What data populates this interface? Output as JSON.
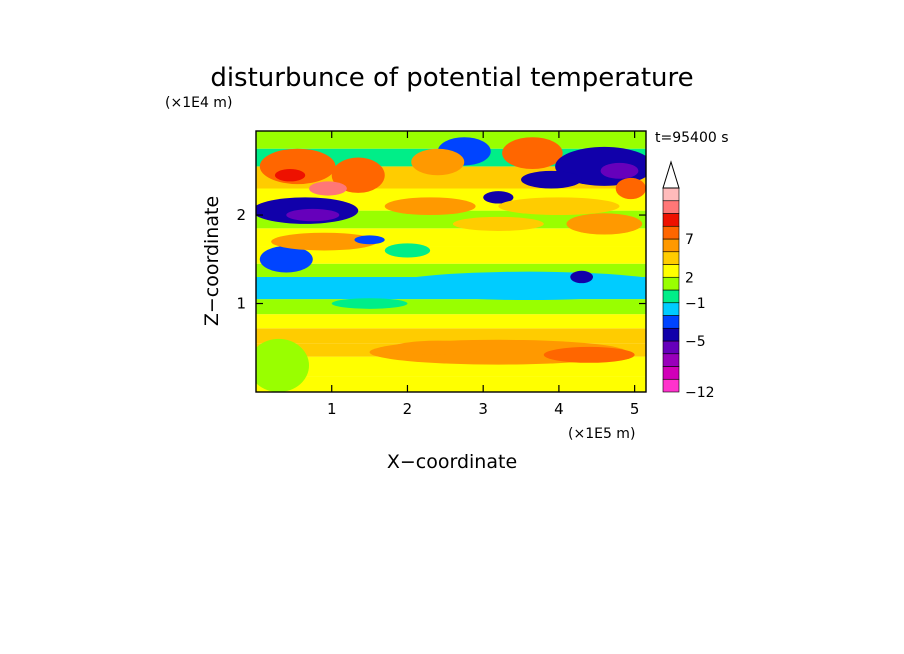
{
  "chart_data": {
    "type": "heatmap",
    "title": "disturbunce of potential temperature",
    "xlabel": "X−coordinate",
    "ylabel": "Z−coordinate",
    "x_unit": "(×1E5 m)",
    "y_unit": "(×1E4 m)",
    "time_label": "t=95400 s",
    "xlim": [
      0,
      5.15
    ],
    "ylim": [
      0,
      2.95
    ],
    "x_ticks": [
      {
        "value": 1,
        "label": "1"
      },
      {
        "value": 2,
        "label": "2"
      },
      {
        "value": 3,
        "label": "3"
      },
      {
        "value": 4,
        "label": "4"
      },
      {
        "value": 5,
        "label": "5"
      }
    ],
    "y_ticks": [
      {
        "value": 1,
        "label": "1"
      },
      {
        "value": 2,
        "label": "2"
      }
    ],
    "colorbar": {
      "colors": [
        "#ff33cc",
        "#d100b8",
        "#9900bb",
        "#6600bb",
        "#1100aa",
        "#0044ff",
        "#00ccff",
        "#00ee88",
        "#99ff00",
        "#ffff00",
        "#ffcc00",
        "#ff9900",
        "#ff6600",
        "#ee1100",
        "#ff7777",
        "#ffbbbb"
      ],
      "triangle_color": "#ffffff",
      "tick_labels": [
        {
          "label": "−12",
          "band_edge": 0
        },
        {
          "label": "−5",
          "band_edge": 4
        },
        {
          "label": "−1",
          "band_edge": 7
        },
        {
          "label": "2",
          "band_edge": 9
        },
        {
          "label": "7",
          "band_edge": 12
        }
      ]
    },
    "bands": [
      {
        "z": [
          0.0,
          0.18
        ],
        "level": 9
      },
      {
        "z": [
          0.18,
          0.4
        ],
        "level": 9
      },
      {
        "z": [
          0.4,
          0.55
        ],
        "level": 10
      },
      {
        "z": [
          0.55,
          0.72
        ],
        "level": 10
      },
      {
        "z": [
          0.72,
          0.88
        ],
        "level": 9
      },
      {
        "z": [
          0.88,
          1.05
        ],
        "level": 8
      },
      {
        "z": [
          1.05,
          1.3
        ],
        "level": 6
      },
      {
        "z": [
          1.3,
          1.45
        ],
        "level": 8
      },
      {
        "z": [
          1.45,
          1.65
        ],
        "level": 9
      },
      {
        "z": [
          1.65,
          1.85
        ],
        "level": 9
      },
      {
        "z": [
          1.85,
          2.05
        ],
        "level": 8
      },
      {
        "z": [
          2.05,
          2.3
        ],
        "level": 9
      },
      {
        "z": [
          2.3,
          2.55
        ],
        "level": 10
      },
      {
        "z": [
          2.55,
          2.75
        ],
        "level": 7
      },
      {
        "z": [
          2.75,
          2.95
        ],
        "level": 8
      }
    ],
    "blobs": [
      {
        "x": 3.2,
        "z": 0.45,
        "rx": 1.7,
        "rz": 0.14,
        "level": 11
      },
      {
        "x": 4.4,
        "z": 0.42,
        "rx": 0.6,
        "rz": 0.09,
        "level": 12
      },
      {
        "x": 2.4,
        "z": 0.5,
        "rx": 0.6,
        "rz": 0.08,
        "level": 11
      },
      {
        "x": 3.6,
        "z": 1.2,
        "rx": 1.9,
        "rz": 0.16,
        "level": 6
      },
      {
        "x": 0.4,
        "z": 1.5,
        "rx": 0.35,
        "rz": 0.15,
        "level": 5
      },
      {
        "x": 1.5,
        "z": 1.0,
        "rx": 0.5,
        "rz": 0.06,
        "level": 7
      },
      {
        "x": 4.3,
        "z": 1.3,
        "rx": 0.15,
        "rz": 0.07,
        "level": 4
      },
      {
        "x": 0.65,
        "z": 2.05,
        "rx": 0.7,
        "rz": 0.15,
        "level": 4
      },
      {
        "x": 0.75,
        "z": 2.0,
        "rx": 0.35,
        "rz": 0.07,
        "level": 3
      },
      {
        "x": 0.9,
        "z": 1.7,
        "rx": 0.7,
        "rz": 0.1,
        "level": 11
      },
      {
        "x": 0.55,
        "z": 2.55,
        "rx": 0.5,
        "rz": 0.2,
        "level": 12
      },
      {
        "x": 0.45,
        "z": 2.45,
        "rx": 0.2,
        "rz": 0.07,
        "level": 13
      },
      {
        "x": 1.35,
        "z": 2.45,
        "rx": 0.35,
        "rz": 0.2,
        "level": 12
      },
      {
        "x": 2.75,
        "z": 2.72,
        "rx": 0.35,
        "rz": 0.16,
        "level": 5
      },
      {
        "x": 2.4,
        "z": 2.6,
        "rx": 0.35,
        "rz": 0.15,
        "level": 11
      },
      {
        "x": 3.65,
        "z": 2.7,
        "rx": 0.4,
        "rz": 0.18,
        "level": 12
      },
      {
        "x": 3.2,
        "z": 2.2,
        "rx": 0.2,
        "rz": 0.07,
        "level": 4
      },
      {
        "x": 4.6,
        "z": 2.55,
        "rx": 0.65,
        "rz": 0.22,
        "level": 4
      },
      {
        "x": 4.8,
        "z": 2.5,
        "rx": 0.25,
        "rz": 0.09,
        "level": 3
      },
      {
        "x": 3.9,
        "z": 2.4,
        "rx": 0.4,
        "rz": 0.1,
        "level": 4
      },
      {
        "x": 4.95,
        "z": 2.3,
        "rx": 0.2,
        "rz": 0.12,
        "level": 12
      },
      {
        "x": 1.5,
        "z": 1.72,
        "rx": 0.2,
        "rz": 0.05,
        "level": 5
      },
      {
        "x": 2.0,
        "z": 1.6,
        "rx": 0.3,
        "rz": 0.08,
        "level": 7
      },
      {
        "x": 3.2,
        "z": 1.9,
        "rx": 0.6,
        "rz": 0.08,
        "level": 10
      },
      {
        "x": 4.6,
        "z": 1.9,
        "rx": 0.5,
        "rz": 0.12,
        "level": 11
      },
      {
        "x": 2.3,
        "z": 2.1,
        "rx": 0.6,
        "rz": 0.1,
        "level": 11
      },
      {
        "x": 4.0,
        "z": 2.1,
        "rx": 0.8,
        "rz": 0.1,
        "level": 10
      },
      {
        "x": 0.3,
        "z": 0.3,
        "rx": 0.4,
        "rz": 0.3,
        "level": 8
      },
      {
        "x": 0.95,
        "z": 2.3,
        "rx": 0.25,
        "rz": 0.08,
        "level": 14
      }
    ]
  }
}
